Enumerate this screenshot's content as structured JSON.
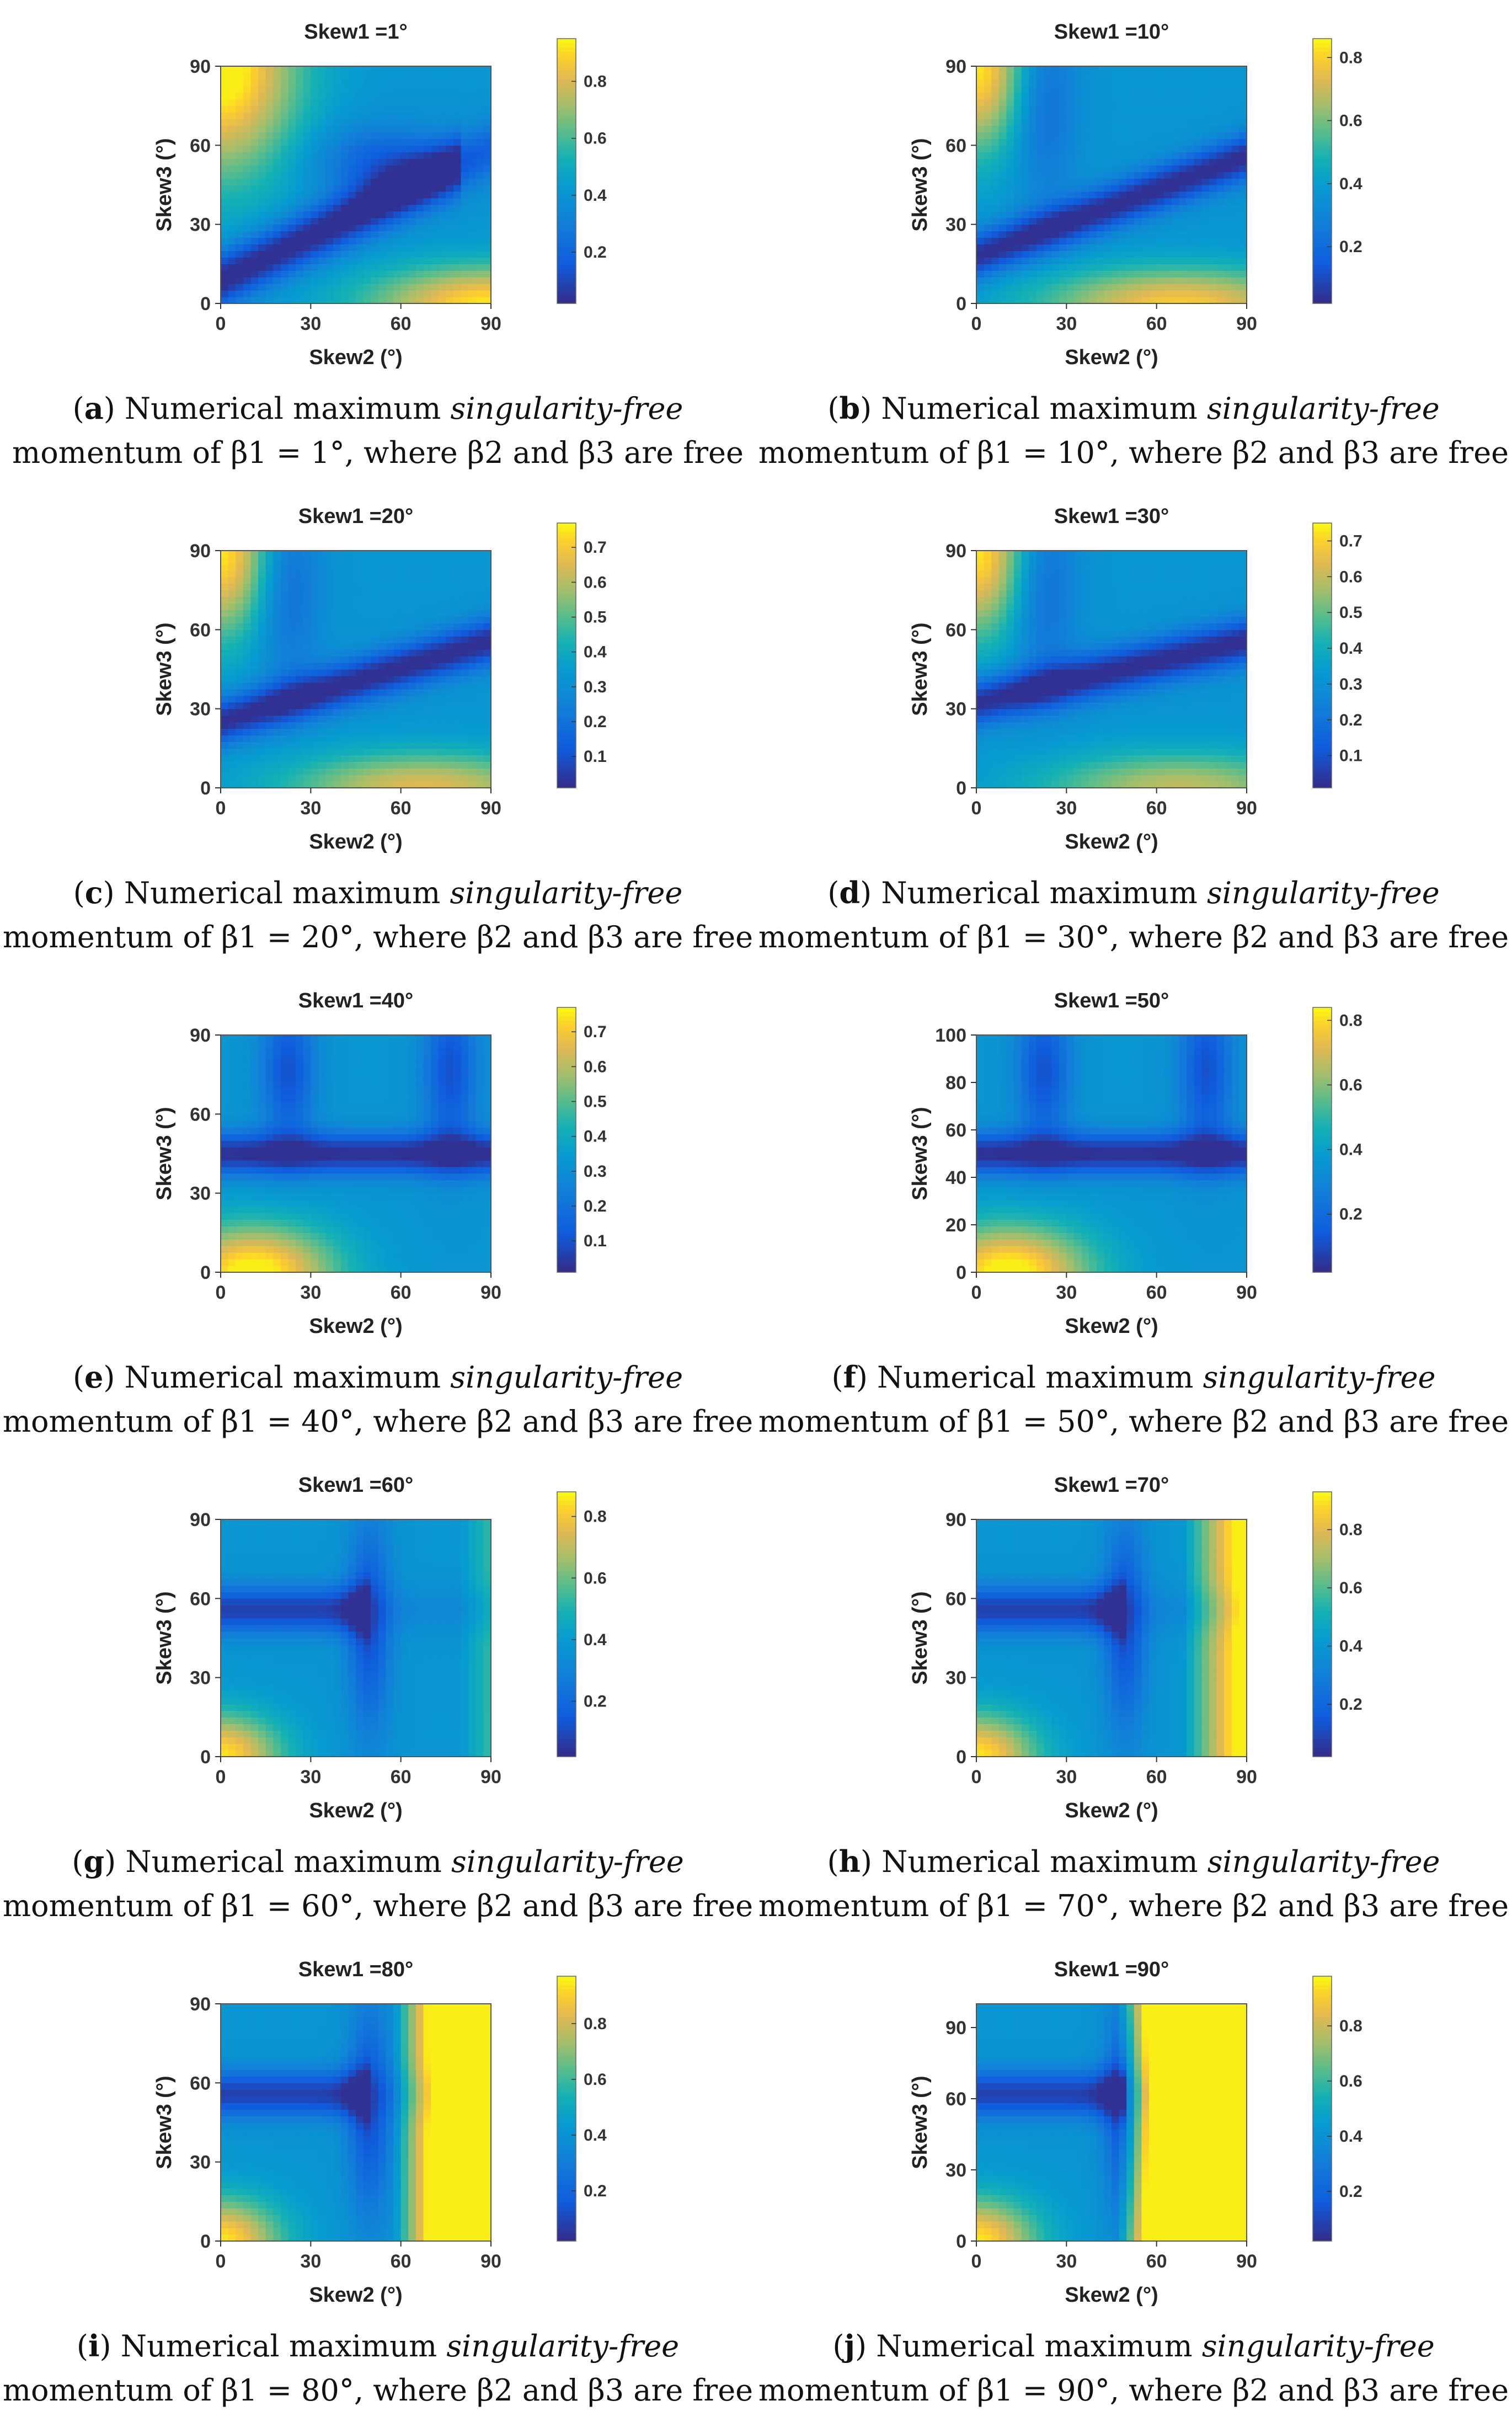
{
  "figure": {
    "caption_prefix": "Numerical maximum",
    "caption_italic": "singularity-free",
    "caption_tail": "where β2 and β3 are free"
  },
  "chart_data": [
    {
      "type": "heatmap",
      "panel": "a",
      "title": "Skew1 =1°",
      "skew1_deg": 1,
      "xlabel": "Skew2 (°)",
      "ylabel": "Skew3 (°)",
      "x_ticks": [
        0,
        30,
        60,
        90
      ],
      "y_ticks": [
        0,
        30,
        60,
        90
      ],
      "x_range": [
        0,
        90
      ],
      "y_range": [
        0,
        90
      ],
      "colorbar_ticks": [
        0.2,
        0.4,
        0.6,
        0.8
      ],
      "color_range": [
        0.02,
        0.95
      ],
      "caption_line2": "momentum of β1 = 1°, where β2 and β3 are free"
    },
    {
      "type": "heatmap",
      "panel": "b",
      "title": "Skew1 =10°",
      "skew1_deg": 10,
      "xlabel": "Skew2 (°)",
      "ylabel": "Skew3 (°)",
      "x_ticks": [
        0,
        30,
        60,
        90
      ],
      "y_ticks": [
        0,
        30,
        60,
        90
      ],
      "x_range": [
        0,
        90
      ],
      "y_range": [
        0,
        90
      ],
      "colorbar_ticks": [
        0.2,
        0.4,
        0.6,
        0.8
      ],
      "color_range": [
        0.02,
        0.86
      ],
      "caption_line2": "momentum of β1 = 10°, where β2 and β3 are free"
    },
    {
      "type": "heatmap",
      "panel": "c",
      "title": "Skew1 =20°",
      "skew1_deg": 20,
      "xlabel": "Skew2 (°)",
      "ylabel": "Skew3 (°)",
      "x_ticks": [
        0,
        30,
        60,
        90
      ],
      "y_ticks": [
        0,
        30,
        60,
        90
      ],
      "x_range": [
        0,
        90
      ],
      "y_range": [
        0,
        90
      ],
      "colorbar_ticks": [
        0.1,
        0.2,
        0.3,
        0.4,
        0.5,
        0.6,
        0.7
      ],
      "color_range": [
        0.01,
        0.77
      ],
      "caption_line2": "momentum of β1 = 20°, where β2 and β3 are free"
    },
    {
      "type": "heatmap",
      "panel": "d",
      "title": "Skew1 =30°",
      "skew1_deg": 30,
      "xlabel": "Skew2 (°)",
      "ylabel": "Skew3 (°)",
      "x_ticks": [
        0,
        30,
        60,
        90
      ],
      "y_ticks": [
        0,
        30,
        60,
        90
      ],
      "x_range": [
        0,
        90
      ],
      "y_range": [
        0,
        90
      ],
      "colorbar_ticks": [
        0.1,
        0.2,
        0.3,
        0.4,
        0.5,
        0.6,
        0.7
      ],
      "color_range": [
        0.01,
        0.75
      ],
      "caption_line2": "momentum of β1 = 30°, where β2 and β3 are free"
    },
    {
      "type": "heatmap",
      "panel": "e",
      "title": "Skew1 =40°",
      "skew1_deg": 40,
      "xlabel": "Skew2 (°)",
      "ylabel": "Skew3 (°)",
      "x_ticks": [
        0,
        30,
        60,
        90
      ],
      "y_ticks": [
        0,
        30,
        60,
        90
      ],
      "x_range": [
        0,
        90
      ],
      "y_range": [
        0,
        90
      ],
      "colorbar_ticks": [
        0.1,
        0.2,
        0.3,
        0.4,
        0.5,
        0.6,
        0.7
      ],
      "color_range": [
        0.01,
        0.77
      ],
      "caption_line2": "momentum of β1 = 40°, where β2 and β3 are free"
    },
    {
      "type": "heatmap",
      "panel": "f",
      "title": "Skew1 =50°",
      "skew1_deg": 50,
      "xlabel": "Skew2 (°)",
      "ylabel": "Skew3 (°)",
      "x_ticks": [
        0,
        30,
        60,
        90
      ],
      "y_ticks": [
        0,
        20,
        40,
        60,
        80,
        100
      ],
      "x_range": [
        0,
        90
      ],
      "y_range": [
        0,
        100
      ],
      "colorbar_ticks": [
        0.2,
        0.4,
        0.6,
        0.8
      ],
      "color_range": [
        0.02,
        0.84
      ],
      "caption_line2": "momentum of β1 = 50°, where β2 and β3 are free"
    },
    {
      "type": "heatmap",
      "panel": "g",
      "title": "Skew1 =60°",
      "skew1_deg": 60,
      "xlabel": "Skew2 (°)",
      "ylabel": "Skew3 (°)",
      "x_ticks": [
        0,
        30,
        60,
        90
      ],
      "y_ticks": [
        0,
        30,
        60,
        90
      ],
      "x_range": [
        0,
        90
      ],
      "y_range": [
        0,
        90
      ],
      "colorbar_ticks": [
        0.2,
        0.4,
        0.6,
        0.8
      ],
      "color_range": [
        0.02,
        0.88
      ],
      "caption_line2": "momentum of β1 = 60°, where β2 and β3 are free"
    },
    {
      "type": "heatmap",
      "panel": "h",
      "title": "Skew1 =70°",
      "skew1_deg": 70,
      "xlabel": "Skew2 (°)",
      "ylabel": "Skew3 (°)",
      "x_ticks": [
        0,
        30,
        60,
        90
      ],
      "y_ticks": [
        0,
        30,
        60,
        90
      ],
      "x_range": [
        0,
        90
      ],
      "y_range": [
        0,
        90
      ],
      "colorbar_ticks": [
        0.2,
        0.4,
        0.6,
        0.8
      ],
      "color_range": [
        0.02,
        0.93
      ],
      "caption_line2": "momentum of β1 = 70°, where β2 and β3 are free"
    },
    {
      "type": "heatmap",
      "panel": "i",
      "title": "Skew1 =80°",
      "skew1_deg": 80,
      "xlabel": "Skew2 (°)",
      "ylabel": "Skew3 (°)",
      "x_ticks": [
        0,
        30,
        60,
        90
      ],
      "y_ticks": [
        0,
        30,
        60,
        90
      ],
      "x_range": [
        0,
        90
      ],
      "y_range": [
        0,
        90
      ],
      "colorbar_ticks": [
        0.2,
        0.4,
        0.6,
        0.8
      ],
      "color_range": [
        0.02,
        0.97
      ],
      "caption_line2": "momentum of β1 = 80°, where β2 and β3 are free"
    },
    {
      "type": "heatmap",
      "panel": "j",
      "title": "Skew1 =90°",
      "skew1_deg": 90,
      "xlabel": "Skew2 (°)",
      "ylabel": "Skew3 (°)",
      "x_ticks": [
        0,
        30,
        60,
        90
      ],
      "y_ticks": [
        0,
        30,
        60,
        90
      ],
      "x_range": [
        0,
        90
      ],
      "y_range": [
        0,
        100
      ],
      "colorbar_ticks": [
        0.2,
        0.4,
        0.6,
        0.8
      ],
      "color_range": [
        0.02,
        0.98
      ],
      "caption_line2": "momentum of β1 = 90°, where β2 and β3 are free"
    }
  ]
}
